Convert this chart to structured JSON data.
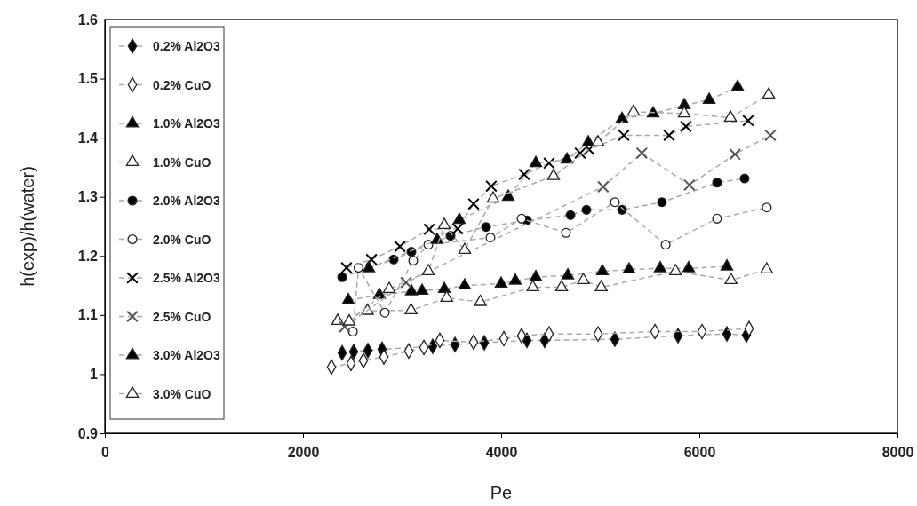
{
  "chart_data": {
    "type": "line",
    "xlabel": "Pe",
    "ylabel": "h(exp)/h(water)",
    "xlim": [
      0,
      8000
    ],
    "xticks": [
      0,
      2000,
      4000,
      6000,
      8000
    ],
    "ylim": [
      0.9,
      1.6
    ],
    "yticks": [
      0.9,
      1,
      1.1,
      1.2,
      1.3,
      1.4,
      1.5,
      1.6
    ],
    "grid": false,
    "legend": "top left",
    "line_style": "dashed",
    "series": [
      {
        "name": "0.2% Al2O3",
        "color": "#000000",
        "marker": "diamond",
        "x": [
          2395,
          2511,
          2655,
          2798,
          3309,
          3534,
          3830,
          4260,
          4439,
          5148,
          5785,
          6278,
          6475
        ],
        "values": [
          1.036,
          1.038,
          1.04,
          1.042,
          1.047,
          1.05,
          1.053,
          1.057,
          1.057,
          1.059,
          1.065,
          1.068,
          1.066
        ]
      },
      {
        "name": "0.2% CuO",
        "color": "#ffffff",
        "marker": "diamond",
        "x": [
          2287,
          2484,
          2610,
          2816,
          3067,
          3220,
          3381,
          3722,
          4027,
          4206,
          4484,
          4978,
          5552,
          6027,
          6502
        ],
        "values": [
          1.012,
          1.018,
          1.023,
          1.029,
          1.039,
          1.045,
          1.057,
          1.054,
          1.06,
          1.065,
          1.068,
          1.068,
          1.072,
          1.072,
          1.077
        ]
      },
      {
        "name": "1.0% Al2O3",
        "color": "#000000",
        "marker": "triangle",
        "x": [
          2457,
          2771,
          3094,
          3202,
          3426,
          3632,
          4000,
          4143,
          4350,
          4673,
          5022,
          5291,
          5605,
          5892,
          6278
        ],
        "values": [
          1.125,
          1.134,
          1.14,
          1.141,
          1.144,
          1.15,
          1.153,
          1.158,
          1.164,
          1.167,
          1.174,
          1.177,
          1.179,
          1.179,
          1.182
        ]
      },
      {
        "name": "1.0% CuO",
        "color": "#ffffff",
        "marker": "triangle",
        "x": [
          2350,
          2650,
          3090,
          3450,
          3790,
          4320,
          4610,
          4830,
          5010,
          5760,
          6320,
          6680
        ],
        "values": [
          1.09,
          1.107,
          1.108,
          1.129,
          1.122,
          1.147,
          1.147,
          1.159,
          1.147,
          1.174,
          1.159,
          1.177
        ]
      },
      {
        "name": "2.0% Al2O3",
        "color": "#000000",
        "marker": "circle",
        "x": [
          2395,
          2915,
          3094,
          3489,
          3848,
          4260,
          4700,
          4861,
          5220,
          5623,
          6179,
          6457
        ],
        "values": [
          1.164,
          1.194,
          1.207,
          1.234,
          1.249,
          1.26,
          1.269,
          1.278,
          1.278,
          1.291,
          1.324,
          1.331
        ]
      },
      {
        "name": "2.0% CuO",
        "color": "#ffffff",
        "marker": "circle",
        "x": [
          2503,
          2560,
          2825,
          3112,
          3265,
          3892,
          4206,
          4655,
          5148,
          5660,
          6179,
          6681
        ],
        "values": [
          1.072,
          1.18,
          1.104,
          1.192,
          1.219,
          1.231,
          1.263,
          1.239,
          1.291,
          1.219,
          1.263,
          1.282
        ]
      },
      {
        "name": "2.5% Al2O3",
        "color": "#000000",
        "marker": "cross",
        "x": [
          2439,
          2691,
          2978,
          3274,
          3561,
          3722,
          3901,
          4233,
          4484,
          4798,
          4888,
          5238,
          5695,
          5865,
          6493
        ],
        "values": [
          1.18,
          1.194,
          1.216,
          1.245,
          1.246,
          1.288,
          1.318,
          1.338,
          1.357,
          1.374,
          1.38,
          1.404,
          1.404,
          1.419,
          1.429
        ]
      },
      {
        "name": "2.5% CuO",
        "color": "#555555",
        "marker": "cross",
        "x": [
          2420,
          3040,
          5030,
          5420,
          5900,
          6360,
          6717
        ],
        "values": [
          1.08,
          1.155,
          1.317,
          1.374,
          1.32,
          1.372,
          1.404
        ]
      },
      {
        "name": "3.0% Al2O3",
        "color": "#000000",
        "marker": "triangle",
        "x": [
          2664,
          3354,
          3578,
          4072,
          4350,
          4664,
          4879,
          5220,
          5534,
          5848,
          6099,
          6386
        ],
        "values": [
          1.179,
          1.227,
          1.261,
          1.3,
          1.357,
          1.363,
          1.392,
          1.432,
          1.441,
          1.455,
          1.464,
          1.486
        ]
      },
      {
        "name": "3.0% CuO",
        "color": "#ffffff",
        "marker": "triangle",
        "x": [
          2466,
          2870,
          3265,
          3426,
          3632,
          3919,
          4529,
          4978,
          5336,
          5848,
          6314,
          6700
        ],
        "values": [
          1.089,
          1.144,
          1.174,
          1.252,
          1.21,
          1.297,
          1.335,
          1.392,
          1.444,
          1.441,
          1.434,
          1.473
        ]
      }
    ]
  }
}
